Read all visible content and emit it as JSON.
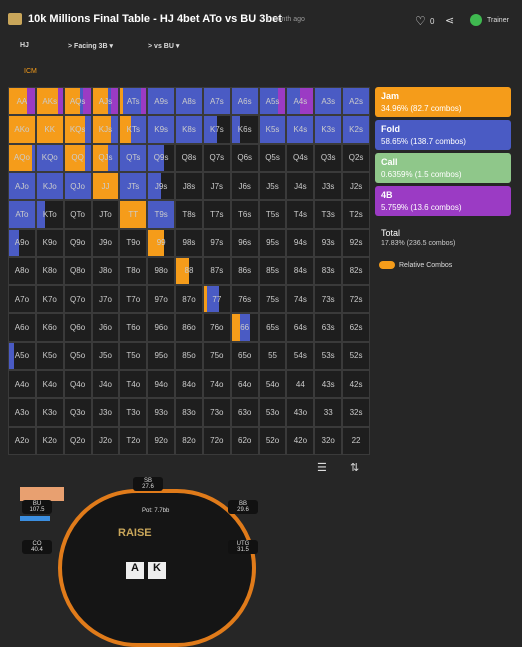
{
  "header": {
    "title": "10k Millions Final Table - HJ 4bet ATo vs BU 3bet",
    "age": "1 month ago",
    "likes": "0",
    "trainer": "Trainer"
  },
  "nav": [
    "HJ",
    "Facing 3B",
    "vs BU"
  ],
  "icm": "ICM",
  "grid": {
    "rows": [
      [
        "AA",
        "AKs",
        "AQs",
        "AJs",
        "ATs",
        "A9s",
        "A8s",
        "A7s",
        "A6s",
        "A5s",
        "A4s",
        "A3s",
        "A2s"
      ],
      [
        "AKo",
        "KK",
        "KQs",
        "KJs",
        "KTs",
        "K9s",
        "K8s",
        "K7s",
        "K6s",
        "K5s",
        "K4s",
        "K3s",
        "K2s"
      ],
      [
        "AQo",
        "KQo",
        "QQ",
        "QJs",
        "QTs",
        "Q9s",
        "Q8s",
        "Q7s",
        "Q6s",
        "Q5s",
        "Q4s",
        "Q3s",
        "Q2s"
      ],
      [
        "AJo",
        "KJo",
        "QJo",
        "JJ",
        "JTs",
        "J9s",
        "J8s",
        "J7s",
        "J6s",
        "J5s",
        "J4s",
        "J3s",
        "J2s"
      ],
      [
        "ATo",
        "KTo",
        "QTo",
        "JTo",
        "TT",
        "T9s",
        "T8s",
        "T7s",
        "T6s",
        "T5s",
        "T4s",
        "T3s",
        "T2s"
      ],
      [
        "A9o",
        "K9o",
        "Q9o",
        "J9o",
        "T9o",
        "99",
        "98s",
        "97s",
        "96s",
        "95s",
        "94s",
        "93s",
        "92s"
      ],
      [
        "A8o",
        "K8o",
        "Q8o",
        "J8o",
        "T8o",
        "98o",
        "88",
        "87s",
        "86s",
        "85s",
        "84s",
        "83s",
        "82s"
      ],
      [
        "A7o",
        "K7o",
        "Q7o",
        "J7o",
        "T7o",
        "97o",
        "87o",
        "77",
        "76s",
        "75s",
        "74s",
        "73s",
        "72s"
      ],
      [
        "A6o",
        "K6o",
        "Q6o",
        "J6o",
        "T6o",
        "96o",
        "86o",
        "76o",
        "66",
        "65s",
        "64s",
        "63s",
        "62s"
      ],
      [
        "A5o",
        "K5o",
        "Q5o",
        "J5o",
        "T5o",
        "95o",
        "85o",
        "75o",
        "65o",
        "55",
        "54s",
        "53s",
        "52s"
      ],
      [
        "A4o",
        "K4o",
        "Q4o",
        "J4o",
        "T4o",
        "94o",
        "84o",
        "74o",
        "64o",
        "54o",
        "44",
        "43s",
        "42s"
      ],
      [
        "A3o",
        "K3o",
        "Q3o",
        "J3o",
        "T3o",
        "93o",
        "83o",
        "73o",
        "63o",
        "53o",
        "43o",
        "33",
        "32s"
      ],
      [
        "A2o",
        "K2o",
        "Q2o",
        "J2o",
        "T2o",
        "92o",
        "82o",
        "72o",
        "62o",
        "52o",
        "42o",
        "32o",
        "22"
      ]
    ],
    "fills": [
      [
        [
          0.7,
          0,
          0,
          0.3
        ],
        [
          0.8,
          0,
          0,
          0.2
        ],
        [
          0.6,
          0.1,
          0,
          0.3
        ],
        [
          0.6,
          0.1,
          0,
          0.3
        ],
        [
          0.1,
          0.7,
          0,
          0.2
        ],
        [
          0,
          1,
          0,
          0
        ],
        [
          0,
          1,
          0,
          0
        ],
        [
          0,
          1,
          0,
          0
        ],
        [
          0,
          1,
          0,
          0
        ],
        [
          0,
          0.7,
          0,
          0.3
        ],
        [
          0,
          0.5,
          0,
          0.5
        ],
        [
          0,
          1,
          0,
          0
        ],
        [
          0,
          1,
          0,
          0
        ]
      ],
      [
        [
          1,
          0,
          0,
          0
        ],
        [
          1,
          0,
          0,
          0
        ],
        [
          0.8,
          0.2,
          0,
          0
        ],
        [
          0.7,
          0.3,
          0,
          0
        ],
        [
          0.4,
          0.6,
          0,
          0
        ],
        [
          0,
          1,
          0,
          0
        ],
        [
          0,
          1,
          0,
          0
        ],
        [
          0,
          0.5,
          0,
          0
        ],
        [
          0,
          0.3,
          0,
          0
        ],
        [
          0,
          1,
          0,
          0
        ],
        [
          0,
          1,
          0,
          0
        ],
        [
          0,
          1,
          0,
          0
        ],
        [
          0,
          1,
          0,
          0
        ]
      ],
      [
        [
          0.9,
          0.1,
          0,
          0
        ],
        [
          0,
          1,
          0,
          0
        ],
        [
          0.8,
          0.2,
          0,
          0
        ],
        [
          0.6,
          0.4,
          0,
          0
        ],
        [
          0,
          1,
          0,
          0
        ],
        [
          0,
          0.6,
          0,
          0
        ],
        null,
        null,
        null,
        null,
        null,
        null,
        null
      ],
      [
        [
          0,
          1,
          0,
          0
        ],
        [
          0,
          1,
          0,
          0
        ],
        [
          0,
          1,
          0,
          0
        ],
        [
          1,
          0,
          0,
          0
        ],
        [
          0,
          1,
          0,
          0
        ],
        [
          0,
          0.5,
          0,
          0
        ],
        null,
        null,
        null,
        null,
        null,
        null,
        null
      ],
      [
        [
          0,
          1,
          0,
          0
        ],
        [
          0,
          0.3,
          0,
          0
        ],
        null,
        null,
        [
          1,
          0,
          0,
          0
        ],
        [
          0,
          1,
          0,
          0
        ],
        null,
        null,
        null,
        null,
        null,
        null,
        null
      ],
      [
        [
          0,
          0.4,
          0,
          0
        ],
        null,
        null,
        null,
        null,
        [
          0.6,
          0,
          0,
          0
        ],
        null,
        null,
        null,
        null,
        null,
        null,
        null
      ],
      [
        null,
        null,
        null,
        null,
        null,
        null,
        [
          0.5,
          0,
          0,
          0
        ],
        null,
        null,
        null,
        null,
        null,
        null
      ],
      [
        null,
        null,
        null,
        null,
        null,
        null,
        null,
        [
          0.1,
          0.5,
          0,
          0
        ],
        null,
        null,
        null,
        null,
        null
      ],
      [
        null,
        null,
        null,
        null,
        null,
        null,
        null,
        null,
        [
          0.3,
          0.4,
          0,
          0
        ],
        null,
        null,
        null,
        null
      ],
      [
        [
          0,
          0.2,
          0,
          0
        ],
        null,
        null,
        null,
        null,
        null,
        null,
        null,
        null,
        null,
        null,
        null,
        null
      ],
      [
        null,
        null,
        null,
        null,
        null,
        null,
        null,
        null,
        null,
        null,
        null,
        null,
        null
      ],
      [
        null,
        null,
        null,
        null,
        null,
        null,
        null,
        null,
        null,
        null,
        null,
        null,
        null
      ],
      [
        null,
        null,
        null,
        null,
        null,
        null,
        null,
        null,
        null,
        null,
        null,
        null,
        null
      ]
    ]
  },
  "legend": {
    "items": [
      {
        "name": "Jam",
        "value_label": "34.96% (82.7 combos)",
        "color": "#f59c1a"
      },
      {
        "name": "Fold",
        "value_label": "58.65% (138.7 combos)",
        "color": "#4a5bc4"
      },
      {
        "name": "Call",
        "value_label": "0.6359% (1.5 combos)",
        "color": "#8fc78a"
      },
      {
        "name": "4B",
        "value_label": "5.759% (13.6 combos)",
        "color": "#9b3bc4"
      }
    ],
    "total": {
      "name": "Total",
      "value_label": "17.83% (236.5 combos)"
    },
    "toggle": "Relative Combos"
  },
  "table": {
    "seats": [
      {
        "name": "SB",
        "stack": "27.6"
      },
      {
        "name": "BB",
        "stack": "29.6"
      },
      {
        "name": "UTG",
        "stack": "31.5"
      },
      {
        "name": "CO",
        "stack": "40.4"
      },
      {
        "name": "BU",
        "stack": "107.5"
      }
    ],
    "pot": "Pot: 7.7bb",
    "logo": "RAISE",
    "cards": [
      "A",
      "K"
    ]
  }
}
